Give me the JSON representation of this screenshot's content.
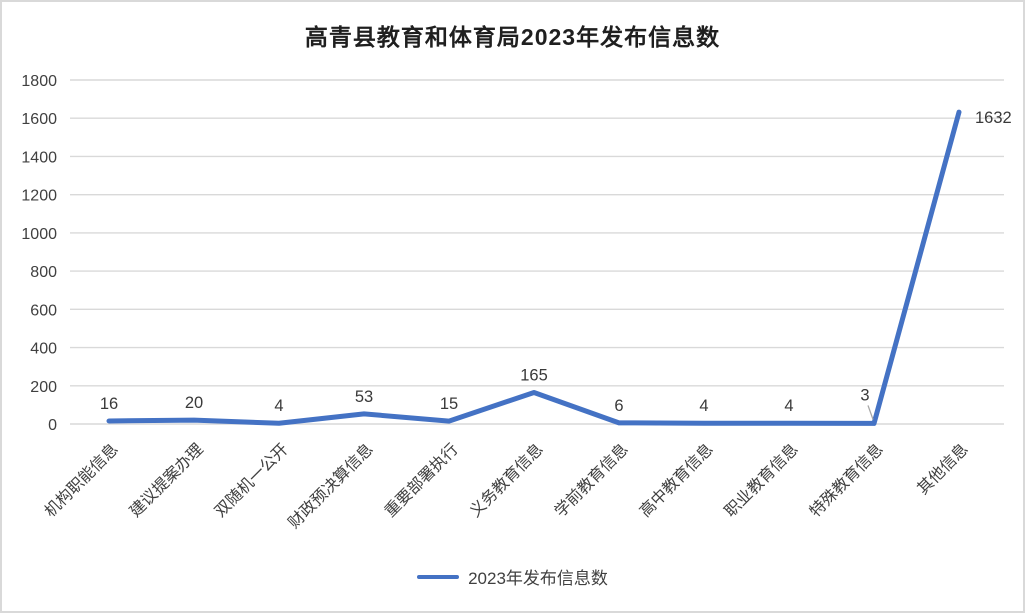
{
  "chart_data": {
    "type": "line",
    "title": "高青县教育和体育局2023年发布信息数",
    "categories": [
      "机构职能信息",
      "建议提案办理",
      "双随机一公开",
      "财政预决算信息",
      "重要部署执行",
      "义务教育信息",
      "学前教育信息",
      "高中教育信息",
      "职业教育信息",
      "特殊教育信息",
      "其他信息"
    ],
    "values": [
      16,
      20,
      4,
      53,
      15,
      165,
      6,
      4,
      4,
      3,
      1632
    ],
    "data_labels": [
      "16",
      "20",
      "4",
      "53",
      "15",
      "165",
      "6",
      "4",
      "4",
      "3",
      "1632"
    ],
    "series_name": "2023年发布信息数",
    "xlabel": "",
    "ylabel": "",
    "ylim": [
      0,
      1800
    ],
    "ytick_step": 200,
    "ytick_labels": [
      "0",
      "200",
      "400",
      "600",
      "800",
      "1000",
      "1200",
      "1400",
      "1600",
      "1800"
    ],
    "grid": true,
    "legend_position": "bottom",
    "line_color": "#4472C4",
    "gridline_color": "#D9D9D9",
    "leader_line_color": "#A6A6A6",
    "axis_text_color": "#404040",
    "data_label_color": "#3a3a3a"
  }
}
